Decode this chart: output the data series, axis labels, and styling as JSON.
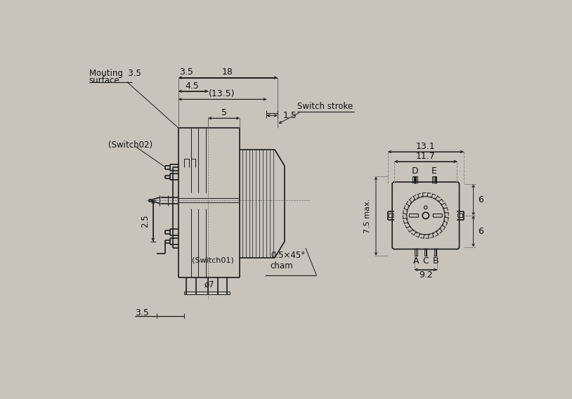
{
  "bg_color": "#c8c4bc",
  "paper_color": "#e8e5e0",
  "line_color": "#1a1a1a",
  "text_color": "#111111",
  "annotations": {
    "mouting_line1": "Mouting",
    "mouting_line2": "surface",
    "switch02": "(Switch02)",
    "switch01": "(Switch01)",
    "switch_stroke": "Switch stroke",
    "dim_35_top": "3.5",
    "dim_18": "18",
    "dim_45": "4.5",
    "dim_135": "(13.5)",
    "dim_15": "1.5",
    "dim_5": "5",
    "dim_25": "2.5",
    "dim_35_bot": "3.5",
    "dim_07": "ø7",
    "cham": "0.5×45°\ncham",
    "dim_131": "13.1",
    "dim_117": "11.7",
    "dim_6_top": "6",
    "dim_6_bot": "6",
    "dim_75": "7.5 max.",
    "dim_92": "9.2",
    "label_D": "D",
    "label_E": "E",
    "label_A": "A",
    "label_C": "C",
    "label_B": "B"
  }
}
